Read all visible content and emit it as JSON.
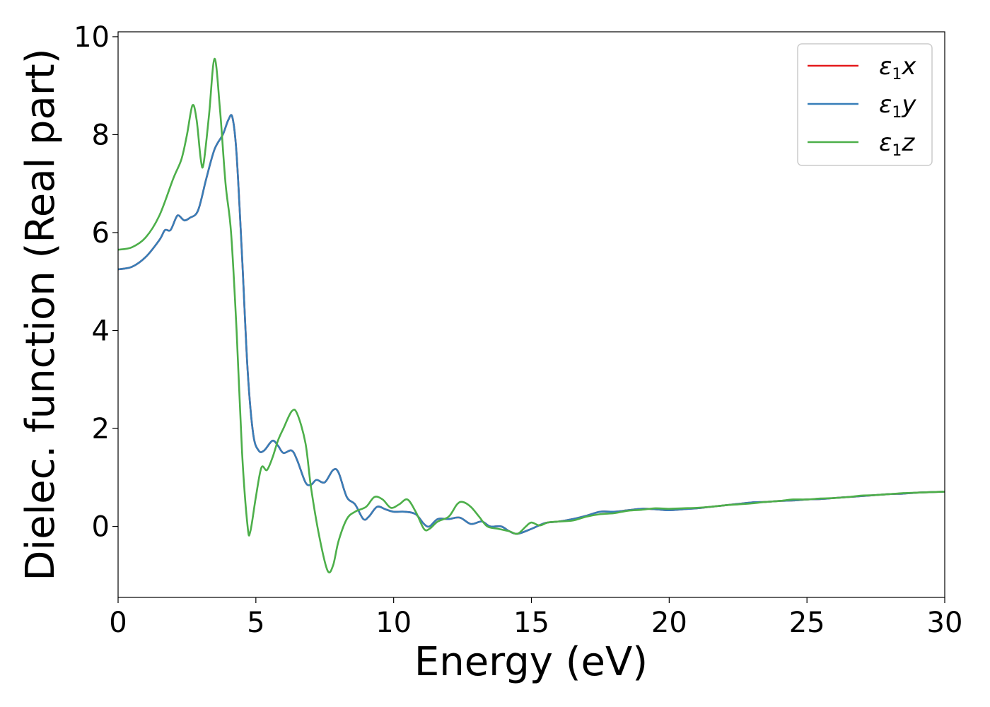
{
  "chart_data": {
    "type": "line",
    "title": "",
    "xlabel": "Energy (eV)",
    "ylabel": "Dielec. function (Real part)",
    "xlim": [
      0,
      30
    ],
    "ylim": [
      -1.45,
      10.1
    ],
    "xticks": [
      0,
      5,
      10,
      15,
      20,
      25,
      30
    ],
    "yticks": [
      0,
      2,
      4,
      6,
      8,
      10
    ],
    "xtick_labels": [
      "0",
      "5",
      "10",
      "15",
      "20",
      "25",
      "30"
    ],
    "ytick_labels": [
      "0",
      "2",
      "4",
      "6",
      "8",
      "10"
    ],
    "grid": false,
    "legend": {
      "placement": "top-right",
      "entries": [
        {
          "label_main": "ε",
          "label_sub": "1",
          "label_suffix": "x",
          "color": "#e41a1c"
        },
        {
          "label_main": "ε",
          "label_sub": "1",
          "label_suffix": "y",
          "color": "#377eb8"
        },
        {
          "label_main": "ε",
          "label_sub": "1",
          "label_suffix": "z",
          "color": "#4daf4a"
        }
      ]
    },
    "series": [
      {
        "name": "ε1x",
        "color": "#e41a1c",
        "points": [
          [
            0,
            5.25
          ],
          [
            0.5,
            5.3
          ],
          [
            1,
            5.5
          ],
          [
            1.5,
            5.85
          ],
          [
            1.7,
            6.05
          ],
          [
            1.9,
            6.05
          ],
          [
            2.1,
            6.3
          ],
          [
            2.2,
            6.35
          ],
          [
            2.4,
            6.25
          ],
          [
            2.6,
            6.3
          ],
          [
            2.9,
            6.45
          ],
          [
            3.2,
            7.1
          ],
          [
            3.5,
            7.7
          ],
          [
            3.8,
            8.0
          ],
          [
            4.0,
            8.3
          ],
          [
            4.15,
            8.35
          ],
          [
            4.3,
            7.6
          ],
          [
            4.5,
            5.5
          ],
          [
            4.7,
            3.2
          ],
          [
            4.9,
            1.9
          ],
          [
            5.1,
            1.55
          ],
          [
            5.3,
            1.55
          ],
          [
            5.6,
            1.75
          ],
          [
            5.8,
            1.65
          ],
          [
            6.0,
            1.5
          ],
          [
            6.3,
            1.55
          ],
          [
            6.5,
            1.35
          ],
          [
            6.8,
            0.9
          ],
          [
            7.0,
            0.85
          ],
          [
            7.2,
            0.95
          ],
          [
            7.5,
            0.9
          ],
          [
            7.8,
            1.15
          ],
          [
            8.0,
            1.1
          ],
          [
            8.3,
            0.6
          ],
          [
            8.6,
            0.45
          ],
          [
            8.9,
            0.15
          ],
          [
            9.1,
            0.2
          ],
          [
            9.4,
            0.4
          ],
          [
            9.7,
            0.35
          ],
          [
            10.0,
            0.3
          ],
          [
            10.4,
            0.3
          ],
          [
            10.8,
            0.25
          ],
          [
            11.1,
            0.05
          ],
          [
            11.3,
            0.0
          ],
          [
            11.6,
            0.15
          ],
          [
            12.0,
            0.15
          ],
          [
            12.4,
            0.18
          ],
          [
            12.8,
            0.05
          ],
          [
            13.2,
            0.1
          ],
          [
            13.5,
            0.0
          ],
          [
            13.9,
            0.0
          ],
          [
            14.2,
            -0.1
          ],
          [
            14.5,
            -0.15
          ],
          [
            15.0,
            -0.05
          ],
          [
            15.5,
            0.07
          ],
          [
            16.0,
            0.1
          ],
          [
            16.5,
            0.15
          ],
          [
            17.0,
            0.22
          ],
          [
            17.5,
            0.3
          ],
          [
            18.0,
            0.3
          ],
          [
            18.5,
            0.33
          ],
          [
            19.0,
            0.36
          ],
          [
            19.5,
            0.35
          ],
          [
            20.0,
            0.33
          ],
          [
            20.5,
            0.35
          ],
          [
            21.0,
            0.37
          ],
          [
            21.5,
            0.4
          ],
          [
            22.0,
            0.43
          ],
          [
            22.5,
            0.46
          ],
          [
            23.0,
            0.49
          ],
          [
            23.5,
            0.5
          ],
          [
            24.0,
            0.52
          ],
          [
            24.5,
            0.53
          ],
          [
            25.0,
            0.55
          ],
          [
            25.5,
            0.56
          ],
          [
            26.0,
            0.58
          ],
          [
            26.5,
            0.6
          ],
          [
            27.0,
            0.62
          ],
          [
            27.5,
            0.64
          ],
          [
            28.0,
            0.66
          ],
          [
            28.5,
            0.67
          ],
          [
            29.0,
            0.69
          ],
          [
            29.5,
            0.7
          ],
          [
            30.0,
            0.71
          ]
        ]
      },
      {
        "name": "ε1y",
        "color": "#377eb8",
        "points": [
          [
            0,
            5.25
          ],
          [
            0.5,
            5.3
          ],
          [
            1,
            5.5
          ],
          [
            1.5,
            5.85
          ],
          [
            1.7,
            6.05
          ],
          [
            1.9,
            6.05
          ],
          [
            2.1,
            6.3
          ],
          [
            2.2,
            6.35
          ],
          [
            2.4,
            6.25
          ],
          [
            2.6,
            6.3
          ],
          [
            2.9,
            6.45
          ],
          [
            3.2,
            7.1
          ],
          [
            3.5,
            7.7
          ],
          [
            3.8,
            8.0
          ],
          [
            4.0,
            8.3
          ],
          [
            4.15,
            8.35
          ],
          [
            4.3,
            7.6
          ],
          [
            4.5,
            5.5
          ],
          [
            4.7,
            3.2
          ],
          [
            4.9,
            1.9
          ],
          [
            5.1,
            1.55
          ],
          [
            5.3,
            1.55
          ],
          [
            5.6,
            1.75
          ],
          [
            5.8,
            1.65
          ],
          [
            6.0,
            1.5
          ],
          [
            6.3,
            1.55
          ],
          [
            6.5,
            1.35
          ],
          [
            6.8,
            0.9
          ],
          [
            7.0,
            0.85
          ],
          [
            7.2,
            0.95
          ],
          [
            7.5,
            0.9
          ],
          [
            7.8,
            1.15
          ],
          [
            8.0,
            1.1
          ],
          [
            8.3,
            0.6
          ],
          [
            8.6,
            0.45
          ],
          [
            8.9,
            0.15
          ],
          [
            9.1,
            0.2
          ],
          [
            9.4,
            0.4
          ],
          [
            9.7,
            0.35
          ],
          [
            10.0,
            0.3
          ],
          [
            10.4,
            0.3
          ],
          [
            10.8,
            0.25
          ],
          [
            11.1,
            0.05
          ],
          [
            11.3,
            0.0
          ],
          [
            11.6,
            0.15
          ],
          [
            12.0,
            0.15
          ],
          [
            12.4,
            0.18
          ],
          [
            12.8,
            0.05
          ],
          [
            13.2,
            0.1
          ],
          [
            13.5,
            0.0
          ],
          [
            13.9,
            0.0
          ],
          [
            14.2,
            -0.1
          ],
          [
            14.5,
            -0.15
          ],
          [
            15.0,
            -0.05
          ],
          [
            15.5,
            0.07
          ],
          [
            16.0,
            0.1
          ],
          [
            16.5,
            0.15
          ],
          [
            17.0,
            0.22
          ],
          [
            17.5,
            0.3
          ],
          [
            18.0,
            0.3
          ],
          [
            18.5,
            0.33
          ],
          [
            19.0,
            0.36
          ],
          [
            19.5,
            0.35
          ],
          [
            20.0,
            0.33
          ],
          [
            20.5,
            0.35
          ],
          [
            21.0,
            0.37
          ],
          [
            21.5,
            0.4
          ],
          [
            22.0,
            0.43
          ],
          [
            22.5,
            0.46
          ],
          [
            23.0,
            0.49
          ],
          [
            23.5,
            0.5
          ],
          [
            24.0,
            0.52
          ],
          [
            24.5,
            0.53
          ],
          [
            25.0,
            0.55
          ],
          [
            25.5,
            0.56
          ],
          [
            26.0,
            0.58
          ],
          [
            26.5,
            0.6
          ],
          [
            27.0,
            0.62
          ],
          [
            27.5,
            0.64
          ],
          [
            28.0,
            0.66
          ],
          [
            28.5,
            0.67
          ],
          [
            29.0,
            0.69
          ],
          [
            29.5,
            0.7
          ],
          [
            30.0,
            0.71
          ]
        ]
      },
      {
        "name": "ε1z",
        "color": "#4daf4a",
        "points": [
          [
            0,
            5.65
          ],
          [
            0.5,
            5.7
          ],
          [
            1,
            5.9
          ],
          [
            1.5,
            6.35
          ],
          [
            2.0,
            7.1
          ],
          [
            2.3,
            7.5
          ],
          [
            2.5,
            8.0
          ],
          [
            2.7,
            8.6
          ],
          [
            2.85,
            8.3
          ],
          [
            3.0,
            7.5
          ],
          [
            3.1,
            7.4
          ],
          [
            3.3,
            8.4
          ],
          [
            3.5,
            9.55
          ],
          [
            3.7,
            8.5
          ],
          [
            3.9,
            7.0
          ],
          [
            4.1,
            6.0
          ],
          [
            4.3,
            4.0
          ],
          [
            4.5,
            1.5
          ],
          [
            4.7,
            0.0
          ],
          [
            4.8,
            -0.1
          ],
          [
            5.0,
            0.6
          ],
          [
            5.2,
            1.2
          ],
          [
            5.4,
            1.15
          ],
          [
            5.6,
            1.4
          ],
          [
            5.8,
            1.75
          ],
          [
            6.0,
            2.0
          ],
          [
            6.3,
            2.35
          ],
          [
            6.5,
            2.3
          ],
          [
            6.8,
            1.7
          ],
          [
            7.0,
            0.8
          ],
          [
            7.3,
            -0.2
          ],
          [
            7.6,
            -0.9
          ],
          [
            7.8,
            -0.8
          ],
          [
            8.0,
            -0.3
          ],
          [
            8.3,
            0.15
          ],
          [
            8.6,
            0.3
          ],
          [
            9.0,
            0.4
          ],
          [
            9.3,
            0.6
          ],
          [
            9.6,
            0.55
          ],
          [
            9.9,
            0.38
          ],
          [
            10.2,
            0.45
          ],
          [
            10.5,
            0.55
          ],
          [
            10.8,
            0.3
          ],
          [
            11.1,
            -0.05
          ],
          [
            11.3,
            -0.05
          ],
          [
            11.6,
            0.1
          ],
          [
            12.0,
            0.2
          ],
          [
            12.3,
            0.45
          ],
          [
            12.5,
            0.5
          ],
          [
            12.8,
            0.4
          ],
          [
            13.1,
            0.2
          ],
          [
            13.4,
            0.0
          ],
          [
            13.8,
            -0.05
          ],
          [
            14.2,
            -0.1
          ],
          [
            14.5,
            -0.15
          ],
          [
            14.8,
            0.0
          ],
          [
            15.0,
            0.08
          ],
          [
            15.3,
            0.02
          ],
          [
            15.6,
            0.08
          ],
          [
            16.0,
            0.1
          ],
          [
            16.5,
            0.12
          ],
          [
            17.0,
            0.2
          ],
          [
            17.5,
            0.25
          ],
          [
            18.0,
            0.27
          ],
          [
            18.5,
            0.32
          ],
          [
            19.0,
            0.34
          ],
          [
            19.5,
            0.37
          ],
          [
            20.0,
            0.36
          ],
          [
            20.5,
            0.37
          ],
          [
            21.0,
            0.38
          ],
          [
            21.5,
            0.4
          ],
          [
            22.0,
            0.43
          ],
          [
            22.5,
            0.45
          ],
          [
            23.0,
            0.47
          ],
          [
            23.5,
            0.5
          ],
          [
            24.0,
            0.52
          ],
          [
            24.5,
            0.55
          ],
          [
            25.0,
            0.55
          ],
          [
            25.5,
            0.57
          ],
          [
            26.0,
            0.58
          ],
          [
            26.5,
            0.6
          ],
          [
            27.0,
            0.63
          ],
          [
            27.5,
            0.64
          ],
          [
            28.0,
            0.66
          ],
          [
            28.5,
            0.68
          ],
          [
            29.0,
            0.69
          ],
          [
            29.5,
            0.7
          ],
          [
            30.0,
            0.71
          ]
        ]
      }
    ]
  }
}
